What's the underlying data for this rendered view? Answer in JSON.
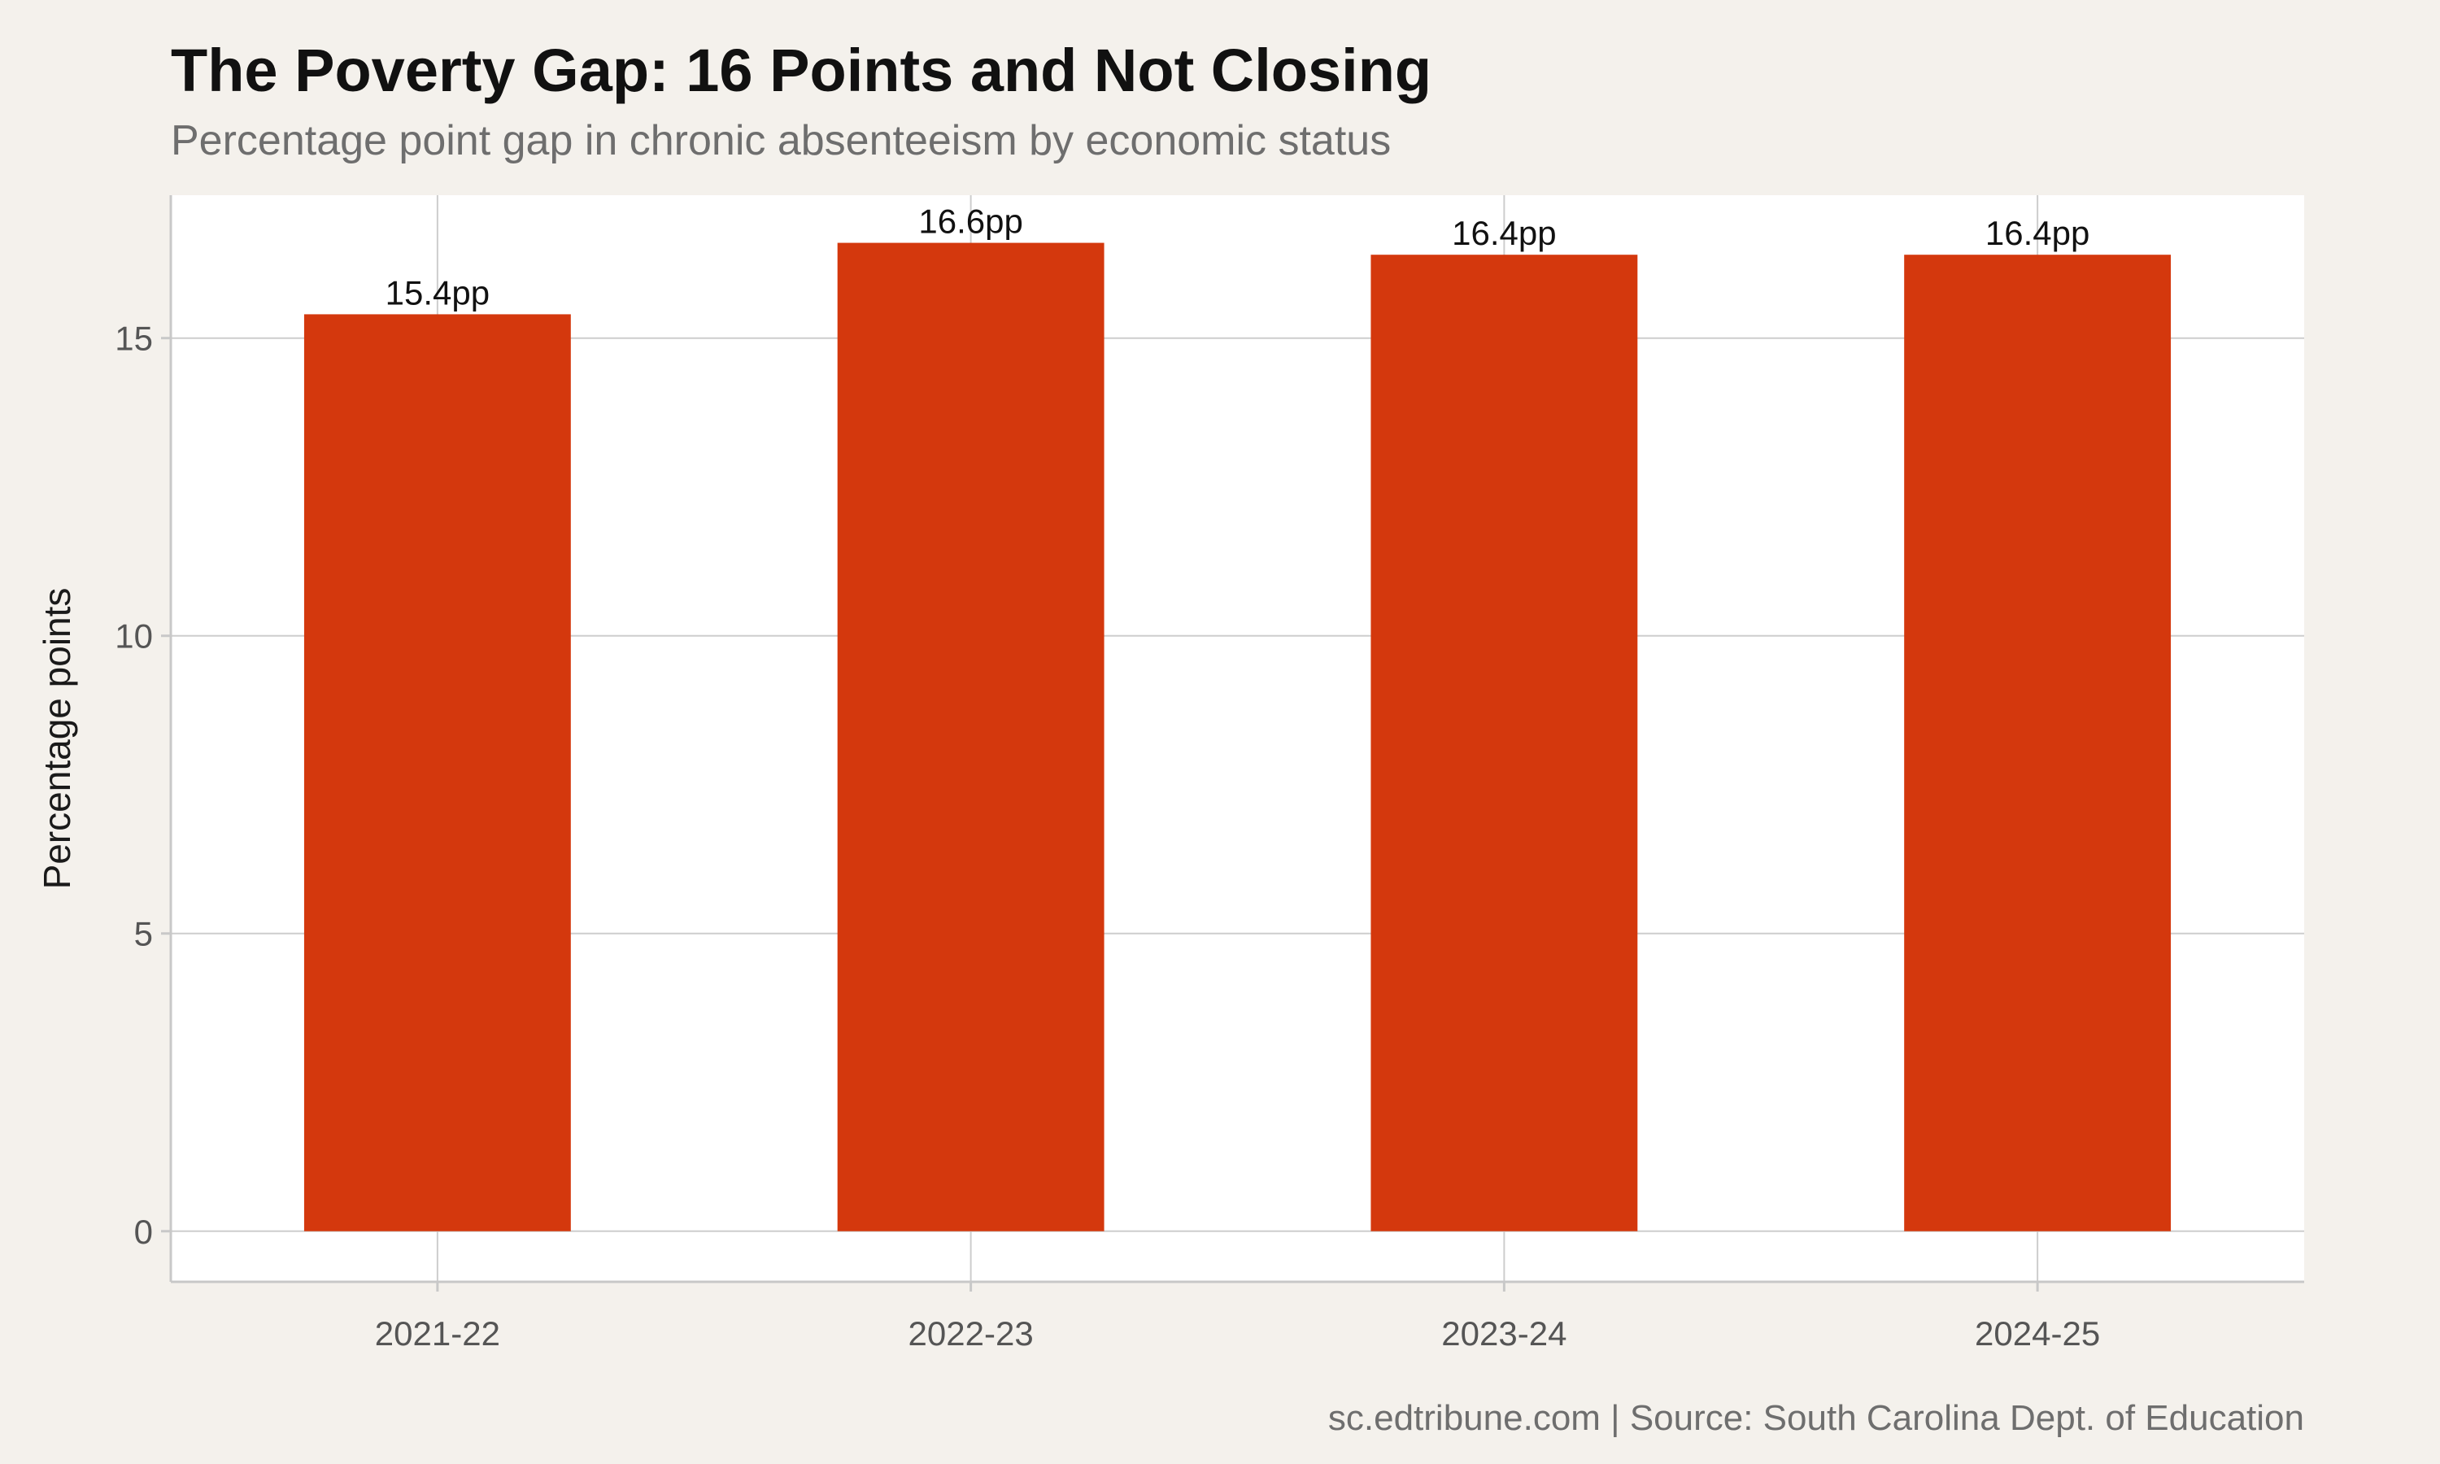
{
  "chart_data": {
    "type": "bar",
    "title": "The Poverty Gap: 16 Points and Not Closing",
    "subtitle": "Percentage point gap in chronic absenteeism by economic status",
    "xlabel": "",
    "ylabel": "Percentage points",
    "categories": [
      "2021-22",
      "2022-23",
      "2023-24",
      "2024-25"
    ],
    "values": [
      15.4,
      16.6,
      16.4,
      16.4
    ],
    "data_labels": [
      "15.4pp",
      "16.6pp",
      "16.4pp",
      "16.4pp"
    ],
    "yticks": [
      0,
      5,
      10,
      15
    ],
    "ylim": [
      -0.85,
      17.4
    ],
    "grid": true,
    "caption": "sc.edtribune.com | Source: South Carolina Dept. of Education",
    "colors": {
      "bar": "#D4380D",
      "page_background": "#F4F1EC",
      "panel_background": "#FFFFFF",
      "grid": "#CDCDCD"
    }
  }
}
